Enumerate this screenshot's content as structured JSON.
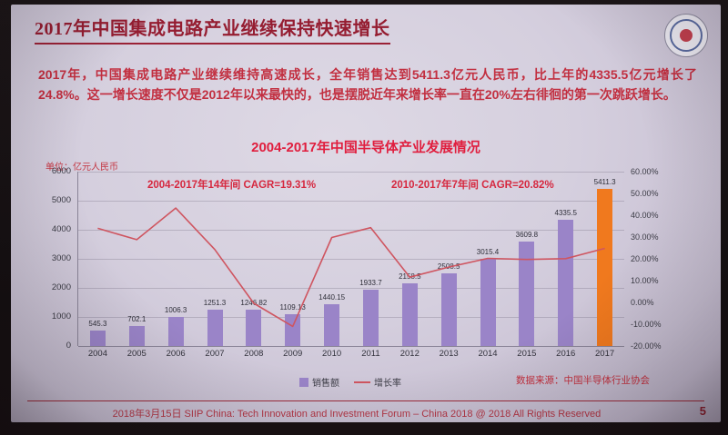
{
  "slide": {
    "title": "2017年中国集成电路产业继续保持快速增长",
    "paragraph": "2017年，中国集成电路产业继续维持高速成长，全年销售达到5411.3亿元人民币，比上年的4335.5亿元增长了24.8%。这一增长速度不仅是2012年以来最快的，也是摆脱近年来增长率一直在20%左右徘徊的第一次跳跃增长。",
    "footer_text": "2018年3月15日 SIIP China: Tech Innovation and Investment Forum – China 2018 @ 2018 All Rights Reserved",
    "page_number": "5"
  },
  "chart_data": {
    "type": "bar",
    "subtype": "bar-line-combo",
    "title": "2004-2017年中国半导体产业发展情况",
    "unit_label": "单位：亿元人民币",
    "annotations": [
      "2004-2017年14年间 CAGR=19.31%",
      "2010-2017年7年间 CAGR=20.82%"
    ],
    "source": "数据来源：中国半导体行业协会",
    "categories": [
      "2004",
      "2005",
      "2006",
      "2007",
      "2008",
      "2009",
      "2010",
      "2011",
      "2012",
      "2013",
      "2014",
      "2015",
      "2016",
      "2017"
    ],
    "series": [
      {
        "name": "销售额",
        "type": "bar",
        "values": [
          545.3,
          702.1,
          1006.3,
          1251.3,
          1246.82,
          1109.13,
          1440.15,
          1933.7,
          2158.5,
          2508.5,
          3015.4,
          3609.8,
          4335.5,
          5411.3
        ]
      },
      {
        "name": "增长率",
        "type": "line",
        "values": [
          34.0,
          28.8,
          43.3,
          24.3,
          -0.4,
          -11.0,
          29.8,
          34.3,
          11.6,
          16.2,
          20.2,
          19.7,
          20.1,
          24.8
        ]
      }
    ],
    "highlight_index": 13,
    "y_left": {
      "min": 0,
      "max": 6000,
      "ticks": [
        "6000",
        "5000",
        "4000",
        "3000",
        "2000",
        "1000",
        "0"
      ]
    },
    "y_right": {
      "min": -20,
      "max": 60,
      "ticks": [
        "60.00%",
        "50.00%",
        "40.00%",
        "30.00%",
        "20.00%",
        "10.00%",
        "0.00%",
        "-10.00%",
        "-20.00%"
      ]
    },
    "legend_position": "bottom",
    "grid": true,
    "colors": {
      "bar": "#9a84c8",
      "bar_highlight": "#f0791e",
      "line": "#cf5560",
      "chart_title": "#e01e3e",
      "accent_red": "#c2303e"
    }
  }
}
